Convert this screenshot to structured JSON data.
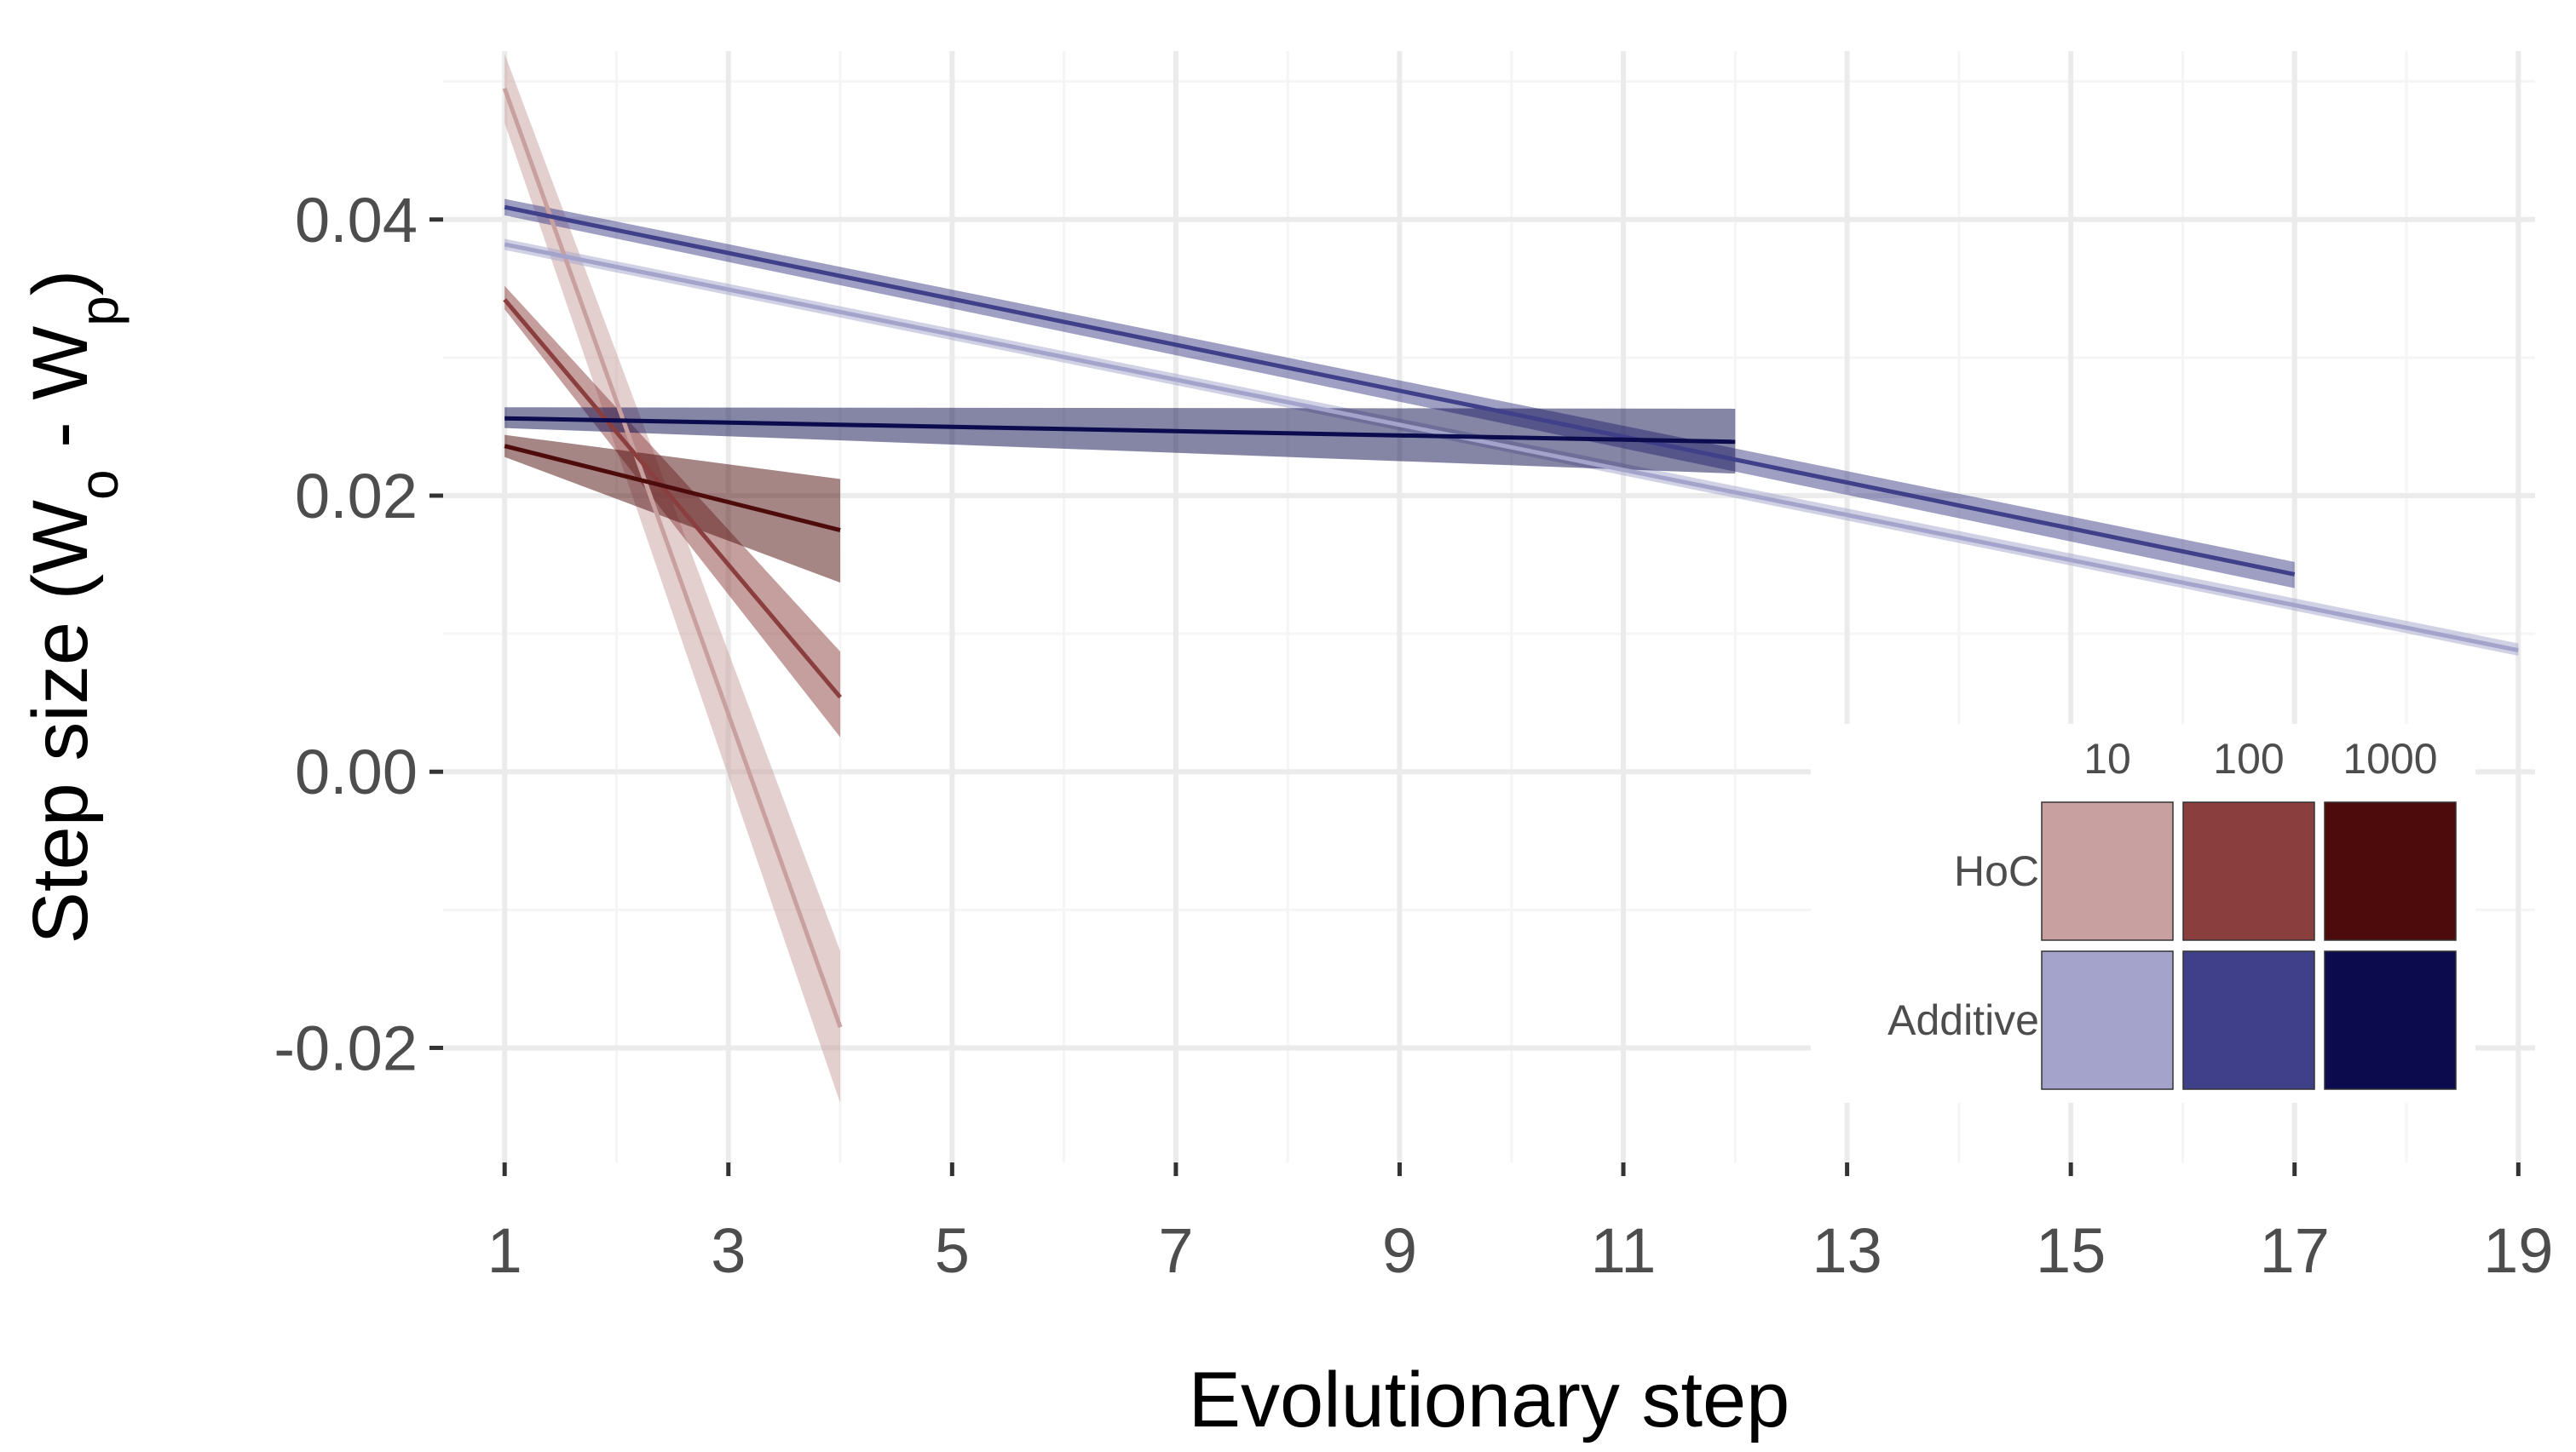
{
  "chart_data": {
    "type": "line",
    "xlabel": "Evolutionary step",
    "ylabel": {
      "prefix": "Step size (W",
      "sub1": "o",
      "middle": " - W",
      "sub2": "p",
      "suffix": ")"
    },
    "xlim": [
      0.45,
      19.15
    ],
    "ylim": [
      -0.0283,
      0.0522
    ],
    "x_ticks": [
      1,
      3,
      5,
      7,
      9,
      11,
      13,
      15,
      17,
      19
    ],
    "x_tick_labels": [
      "1",
      "3",
      "5",
      "7",
      "9",
      "11",
      "13",
      "15",
      "17",
      "19"
    ],
    "y_ticks": [
      -0.02,
      0.0,
      0.02,
      0.04
    ],
    "y_tick_labels": [
      "-0.02",
      "0.00",
      "0.02",
      "0.04"
    ],
    "grid": true,
    "legend": {
      "placement": "bottom-right",
      "columns": [
        "10",
        "100",
        "1000"
      ],
      "rows": [
        "HoC",
        "Additive"
      ],
      "colors": [
        [
          "#c9a0a0",
          "#8b3e3e",
          "#4e0b0b"
        ],
        [
          "#a3a3cb",
          "#3f3f8a",
          "#0b0b4e"
        ]
      ]
    },
    "series": [
      {
        "model": "HoC",
        "size": "10",
        "color": "#c9a0a0",
        "x": [
          1,
          4
        ],
        "y": [
          0.0495,
          -0.0185
        ],
        "ci_lower": [
          0.047,
          -0.024
        ],
        "ci_upper": [
          0.052,
          -0.013
        ]
      },
      {
        "model": "HoC",
        "size": "100",
        "color": "#8b3e3e",
        "x": [
          1,
          4
        ],
        "y": [
          0.0342,
          0.0054
        ],
        "ci_lower": [
          0.0335,
          0.0025
        ],
        "ci_upper": [
          0.0352,
          0.0087
        ]
      },
      {
        "model": "HoC",
        "size": "1000",
        "color": "#4e0b0b",
        "x": [
          1,
          4
        ],
        "y": [
          0.0236,
          0.0175
        ],
        "ci_lower": [
          0.0228,
          0.0137
        ],
        "ci_upper": [
          0.0244,
          0.0212
        ]
      },
      {
        "model": "Additive",
        "size": "10",
        "color": "#a3a3cb",
        "x": [
          1,
          19
        ],
        "y": [
          0.0382,
          0.0088
        ],
        "ci_lower": [
          0.0378,
          0.0084
        ],
        "ci_upper": [
          0.0386,
          0.0093
        ]
      },
      {
        "model": "Additive",
        "size": "100",
        "color": "#3f3f8a",
        "x": [
          1,
          17
        ],
        "y": [
          0.0409,
          0.0143
        ],
        "ci_lower": [
          0.0403,
          0.0133
        ],
        "ci_upper": [
          0.0415,
          0.0152
        ]
      },
      {
        "model": "Additive",
        "size": "1000",
        "color": "#0b0b4e",
        "x": [
          1,
          12
        ],
        "y": [
          0.0256,
          0.0239
        ],
        "ci_lower": [
          0.0249,
          0.0216
        ],
        "ci_upper": [
          0.0264,
          0.0263
        ]
      }
    ]
  }
}
